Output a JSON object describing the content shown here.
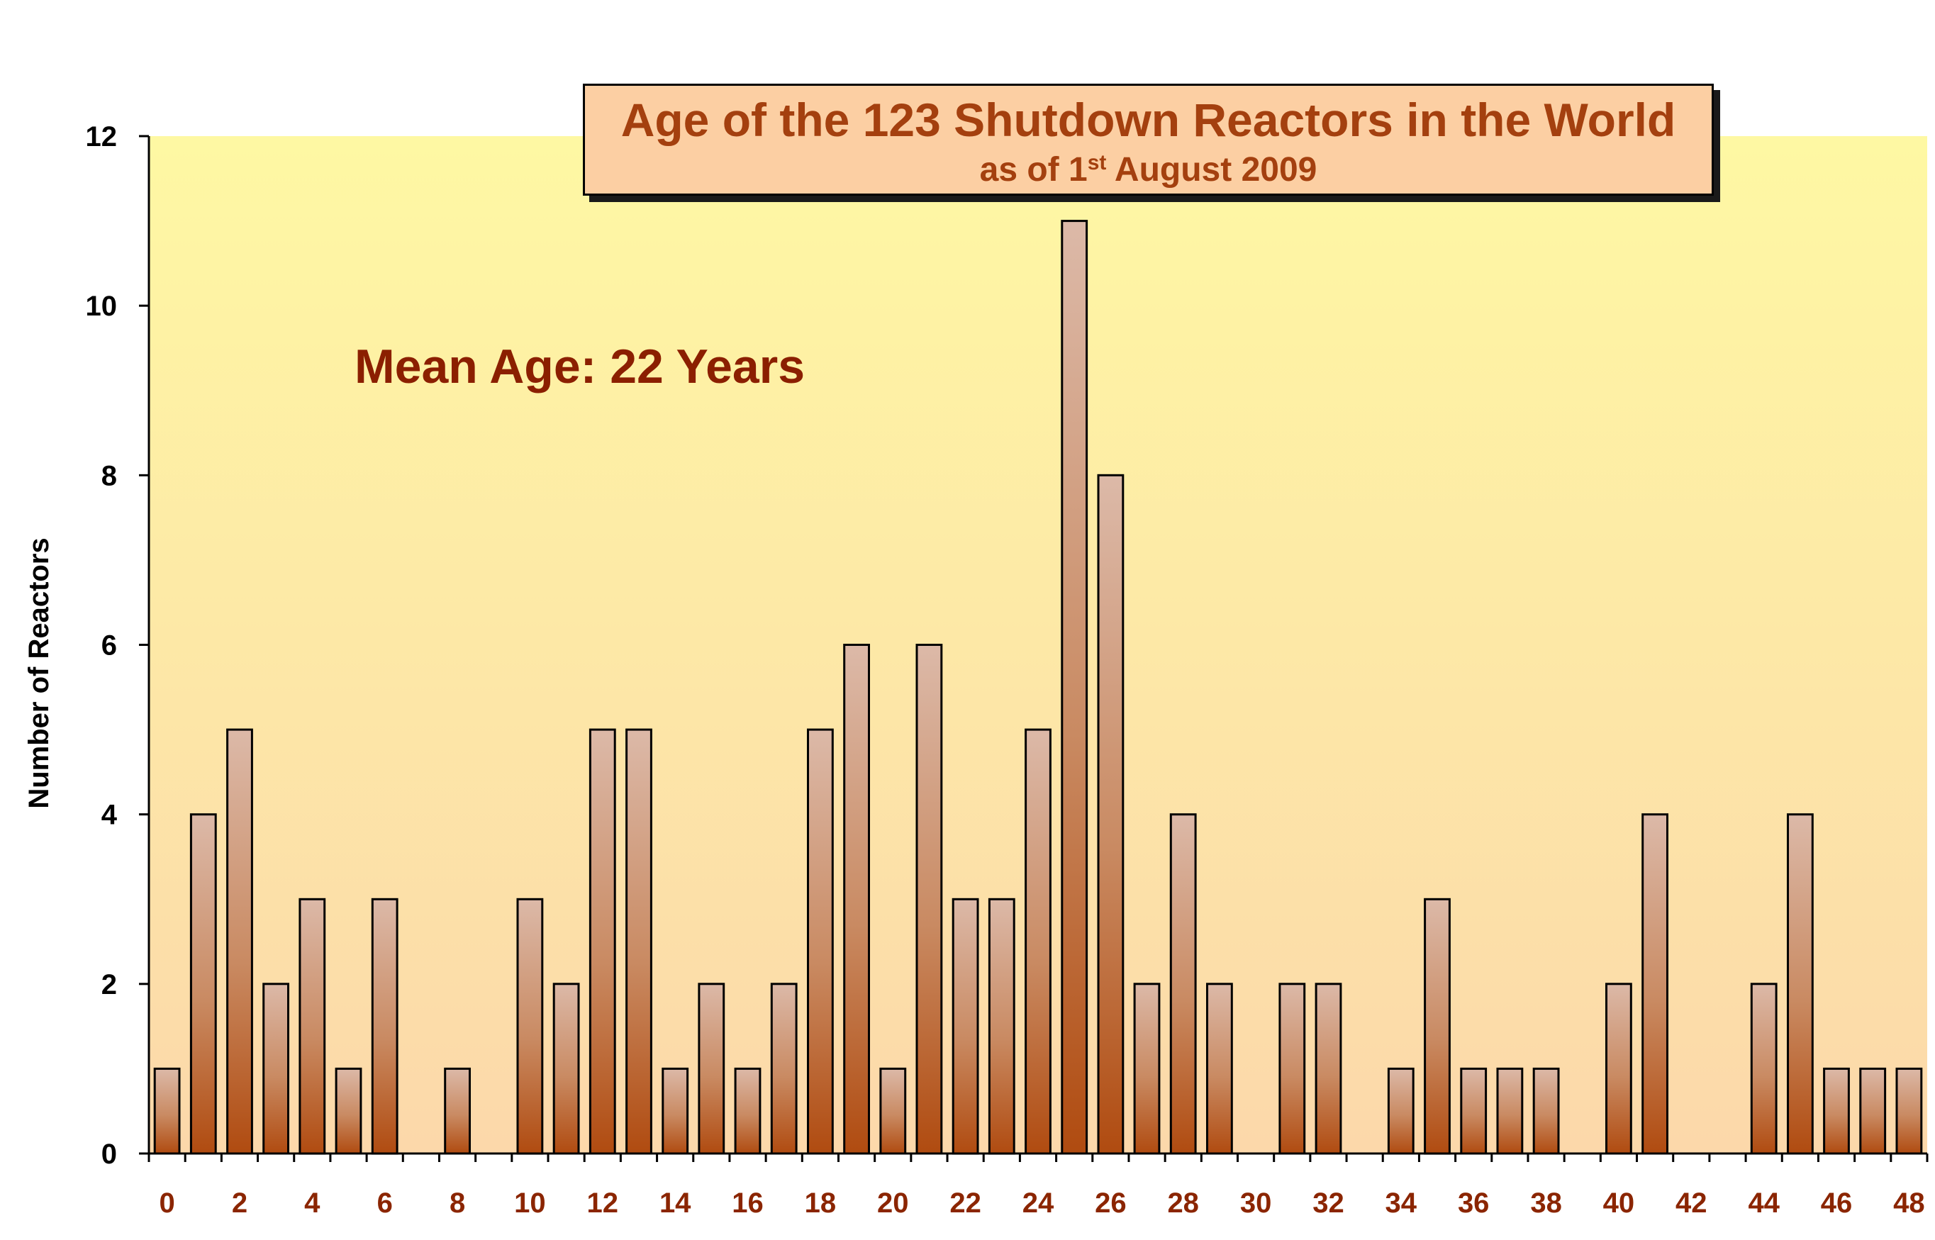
{
  "chart_data": {
    "type": "bar",
    "title": "Age of the 123 Shutdown Reactors in the World",
    "subtitle_prefix": "as of 1",
    "subtitle_sup": "st",
    "subtitle_suffix": " August 2009",
    "annotation": "Mean Age: 22 Years",
    "xlabel": "",
    "ylabel": "Number of Reactors",
    "ylim": [
      0,
      12
    ],
    "yticks": [
      0,
      2,
      4,
      6,
      8,
      10,
      12
    ],
    "x_tick_labels": [
      "0",
      "2",
      "4",
      "6",
      "8",
      "10",
      "12",
      "14",
      "16",
      "18",
      "20",
      "22",
      "24",
      "26",
      "28",
      "30",
      "32",
      "34",
      "36",
      "38",
      "40",
      "42",
      "44",
      "46",
      "48"
    ],
    "categories": [
      0,
      1,
      2,
      3,
      4,
      5,
      6,
      7,
      8,
      9,
      10,
      11,
      12,
      13,
      14,
      15,
      16,
      17,
      18,
      19,
      20,
      21,
      22,
      23,
      24,
      25,
      26,
      27,
      28,
      29,
      30,
      31,
      32,
      33,
      34,
      35,
      36,
      37,
      38,
      39,
      40,
      41,
      42,
      43,
      44,
      45,
      46,
      47,
      48
    ],
    "values": [
      1,
      4,
      5,
      2,
      3,
      1,
      3,
      0,
      1,
      0,
      3,
      2,
      5,
      5,
      1,
      2,
      1,
      2,
      5,
      6,
      1,
      6,
      3,
      3,
      5,
      11,
      8,
      2,
      4,
      2,
      0,
      2,
      2,
      0,
      1,
      3,
      1,
      1,
      1,
      0,
      2,
      4,
      0,
      0,
      2,
      4,
      1,
      1,
      1
    ],
    "grid": false,
    "legend": "none",
    "colors": {
      "bar_top": "#dcb9a8",
      "bar_bottom": "#b04b10",
      "bar_stroke": "#000000",
      "plot_top": "#fef8a3",
      "plot_bottom": "#fcd8aa",
      "title_box_fill": "#fccfa3",
      "title_text": "#a4400f",
      "annotation_text": "#8b1f00",
      "x_tick_text": "#8b2500"
    }
  }
}
